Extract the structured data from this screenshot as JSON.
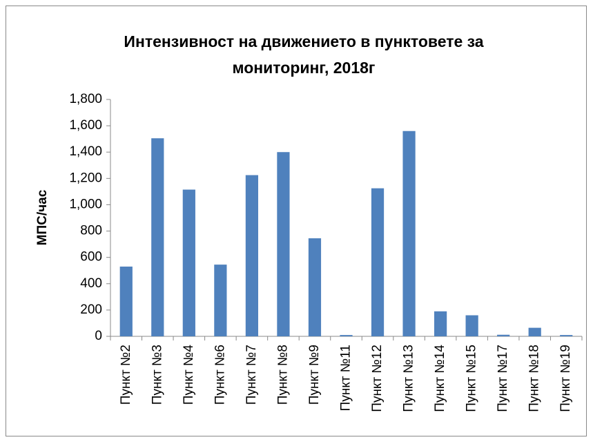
{
  "chart_data": {
    "type": "bar",
    "title": [
      "Интензивност на движението в пунктовете за",
      "мониторинг, 2018г"
    ],
    "y_label": "МПС/час",
    "categories": [
      "Пункт №2",
      "Пункт №3",
      "Пункт №4",
      "Пункт №6",
      "Пункт №7",
      "Пункт №8",
      "Пункт №9",
      "Пункт №11",
      "Пункт №12",
      "Пункт №13",
      "Пункт №14",
      "Пункт №15",
      "Пункт №17",
      "Пункт №18",
      "Пункт №19"
    ],
    "values": [
      530,
      1505,
      1115,
      545,
      1225,
      1400,
      745,
      10,
      1125,
      1560,
      190,
      160,
      12,
      65,
      10
    ],
    "color": "#4f81bd",
    "ylim": [
      0,
      1800
    ],
    "yticks": [
      0,
      200,
      400,
      600,
      800,
      {
        "value": 1000,
        "label": "1,000"
      },
      {
        "value": 1200,
        "label": "1,200"
      },
      {
        "value": 1400,
        "label": "1,400"
      },
      {
        "value": 1600,
        "label": "1,600"
      },
      {
        "value": 1800,
        "label": "1,800"
      }
    ],
    "grid": false
  }
}
